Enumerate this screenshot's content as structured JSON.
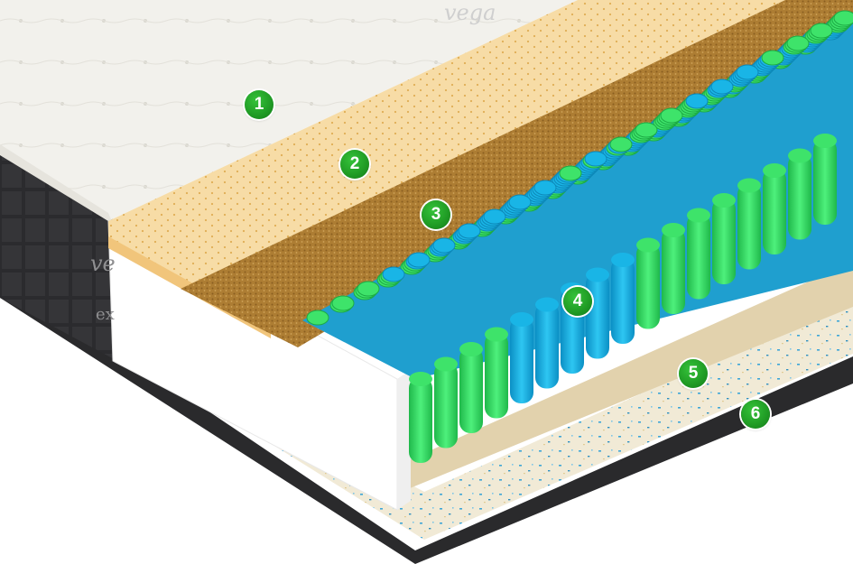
{
  "callouts": [
    {
      "label": "1"
    },
    {
      "label": "2"
    },
    {
      "label": "3"
    },
    {
      "label": "4"
    },
    {
      "label": "5"
    },
    {
      "label": "6"
    }
  ],
  "brand": {
    "cover_text": "vega",
    "side_text": "ve",
    "side_subtext": "ex"
  },
  "colors": {
    "callout_badge": "#1f9a24",
    "latex_layer": "#f6d9a0",
    "coconut_layer": "#a8782c",
    "spring_green": "#3ee36a",
    "spring_blue": "#19b5e6",
    "cover_fabric": "#f3f2ee",
    "side_fabric": "#2a2a2c"
  }
}
